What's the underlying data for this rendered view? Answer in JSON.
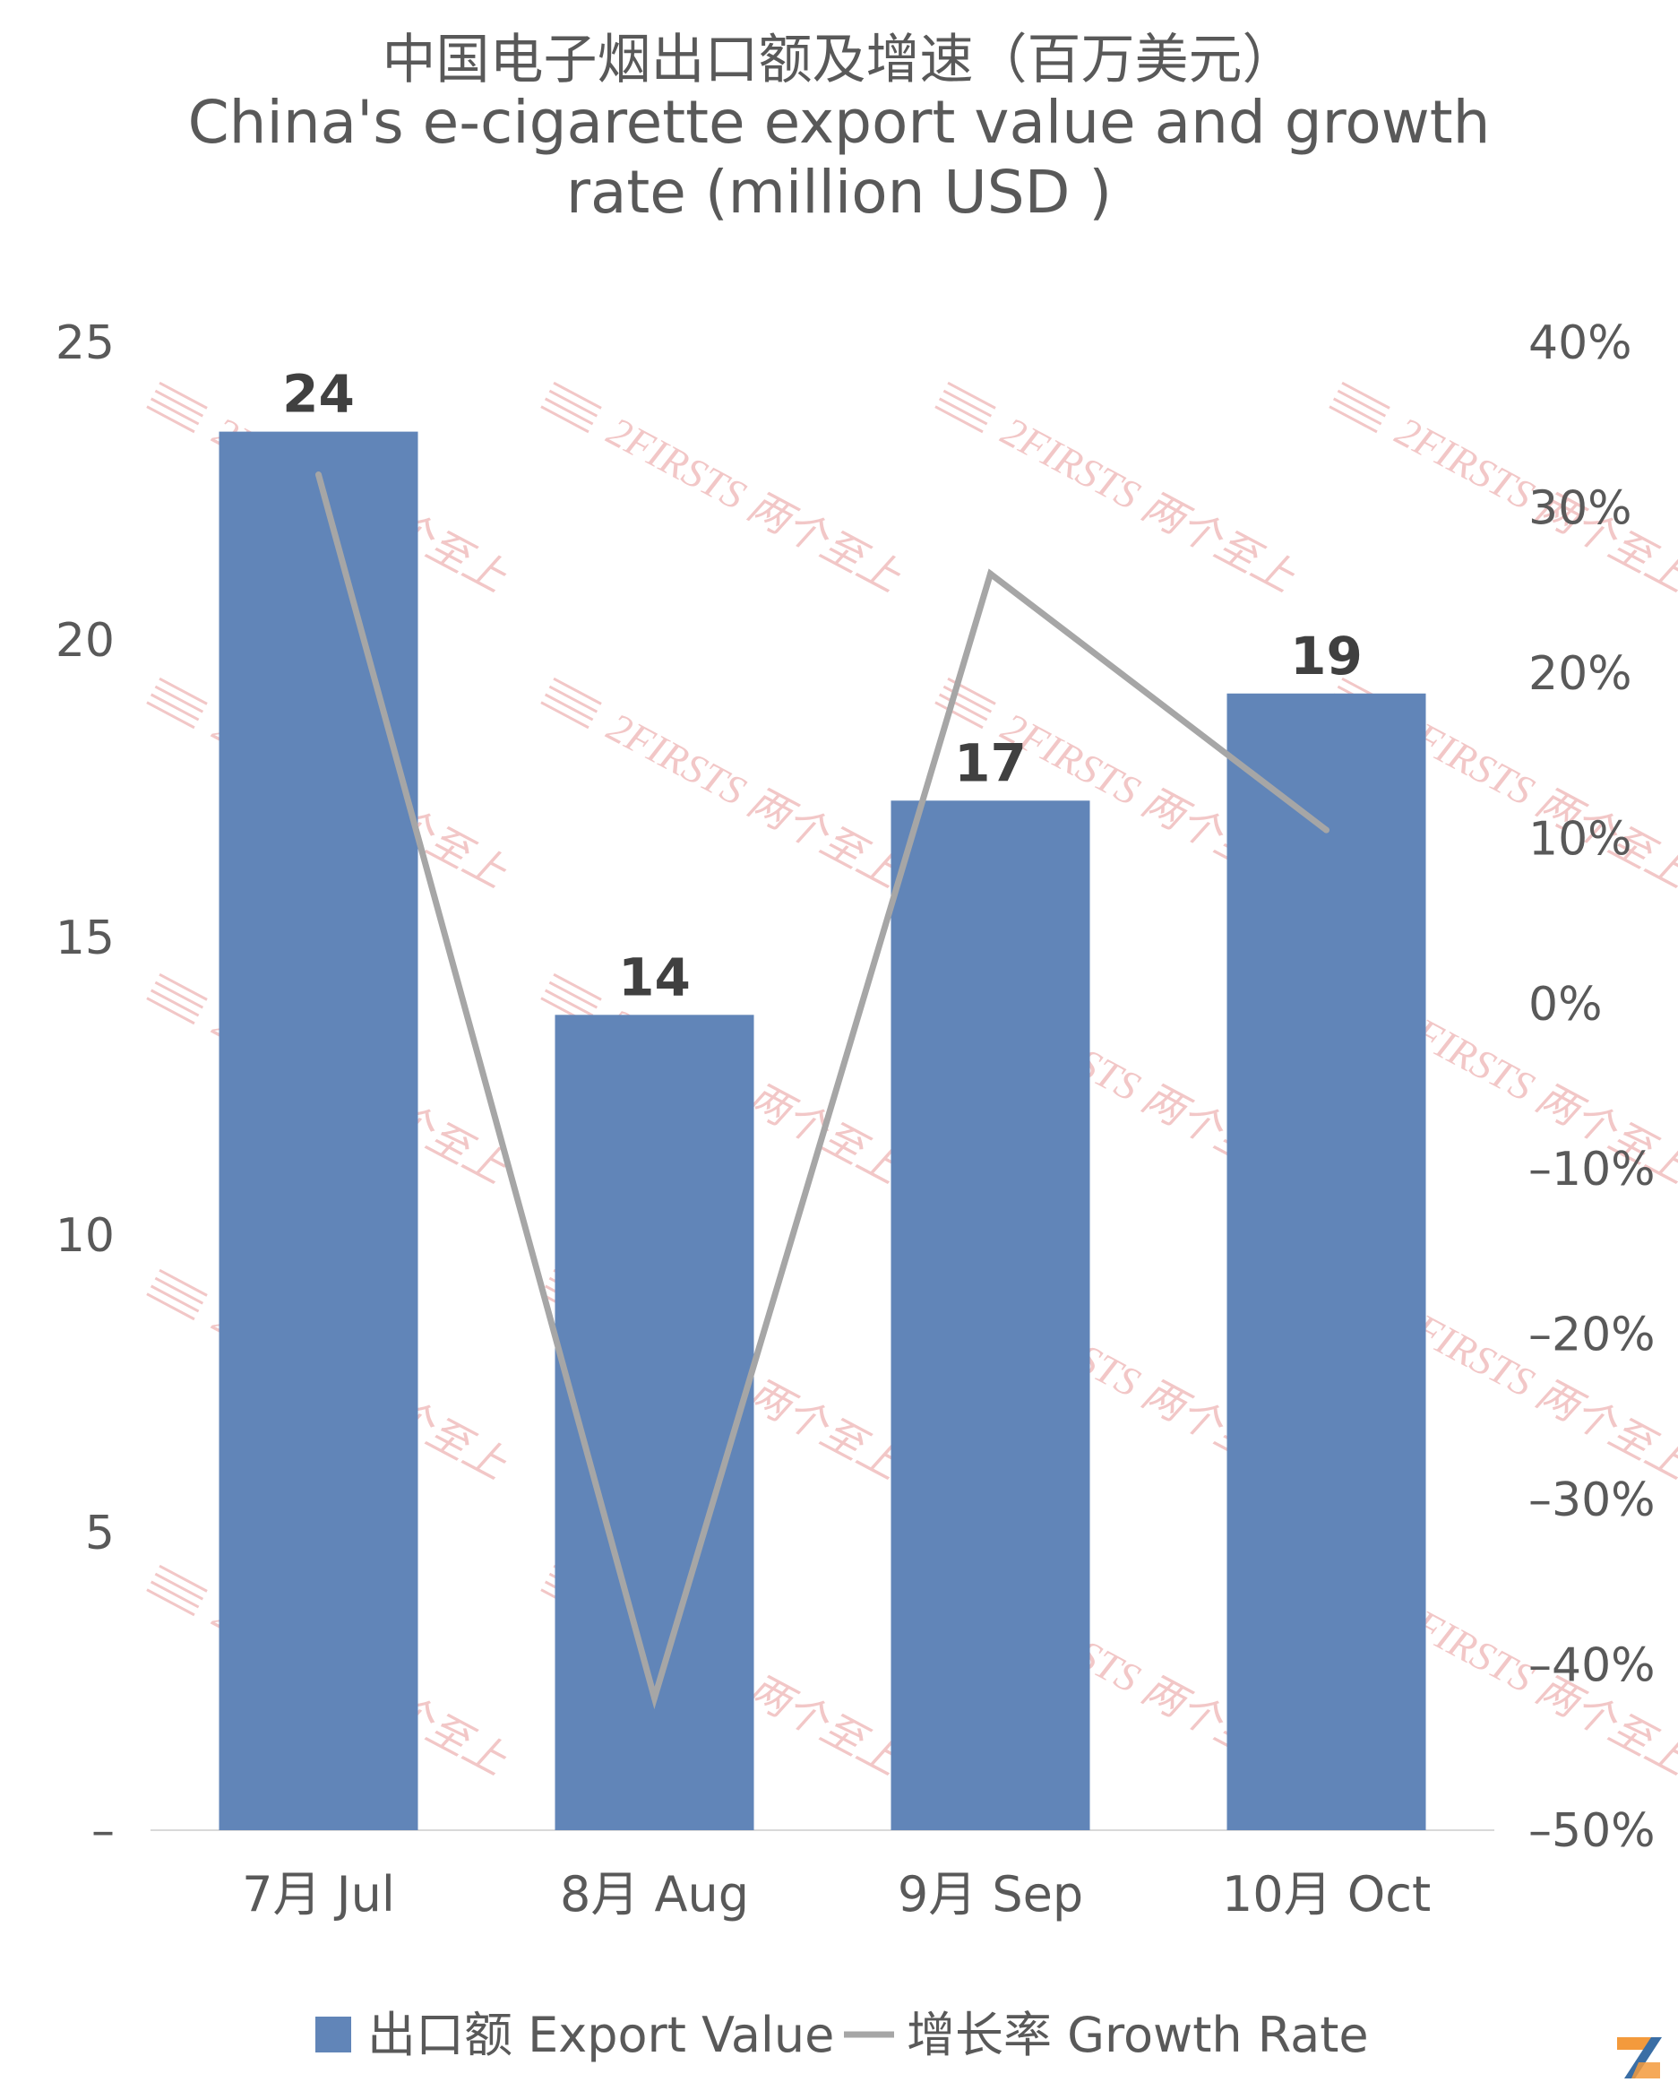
{
  "chart_data": {
    "type": "bar",
    "title": "中国电子烟出口额及增速（百万美元）",
    "subtitle_lines": [
      "China's e-cigarette export value and growth",
      "rate (million USD )"
    ],
    "categories": [
      "7月 Jul",
      "8月 Aug",
      "9月 Sep",
      "10月 Oct"
    ],
    "series": [
      {
        "name": "出口额 Export Value",
        "type": "bar",
        "axis": "left",
        "color": "#6185b8",
        "values": [
          23.5,
          13.7,
          17.3,
          19.1
        ],
        "data_labels": [
          "24",
          "14",
          "17",
          "19"
        ]
      },
      {
        "name": "增长率 Growth Rate",
        "type": "line",
        "axis": "right",
        "color": "#a6a6a6",
        "values": [
          32,
          -42,
          26,
          10.5
        ]
      }
    ],
    "y_left": {
      "min": 0,
      "max": 25,
      "ticks": [
        0,
        5,
        10,
        15,
        20,
        25
      ],
      "tick_labels": [
        "–",
        "5",
        "10",
        "15",
        "20",
        "25"
      ]
    },
    "y_right": {
      "min": -50,
      "max": 40,
      "ticks": [
        -50,
        -40,
        -30,
        -20,
        -10,
        0,
        10,
        20,
        30,
        40
      ],
      "tick_labels": [
        "–50%",
        "–40%",
        "–30%",
        "–20%",
        "–10%",
        "0%",
        "10%",
        "20%",
        "30%",
        "40%"
      ]
    },
    "grid": false,
    "legend_position": "bottom"
  },
  "watermark": {
    "text": "2FIRSTS 两个至上",
    "color": "#f2c7c7"
  },
  "logo": {
    "name": "2firsts-logo-icon",
    "color_primary": "#f39a3c",
    "color_secondary": "#3a6ea5"
  }
}
